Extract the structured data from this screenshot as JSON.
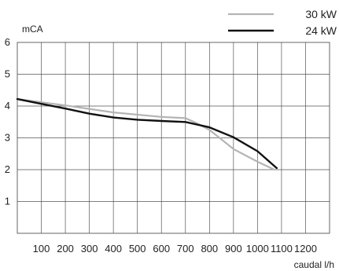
{
  "chart_data": {
    "type": "line",
    "title": "",
    "xlabel": "caudal l/h",
    "ylabel": "mCA",
    "xlim": [
      0,
      1300
    ],
    "ylim": [
      0,
      6
    ],
    "x_ticks": [
      100,
      200,
      300,
      400,
      500,
      600,
      700,
      800,
      900,
      1000,
      1100,
      1200
    ],
    "x_tick_labels": [
      "100",
      "200",
      "300",
      "400",
      "500",
      "600",
      "700",
      "800",
      "900",
      "1000",
      "1100",
      "1200"
    ],
    "y_ticks": [
      1,
      2,
      3,
      4,
      5,
      6
    ],
    "y_tick_labels": [
      "1",
      "2",
      "3",
      "4",
      "5",
      "6"
    ],
    "grid": true,
    "legend_position": "top-right",
    "series": [
      {
        "name": "30 kW",
        "color": "#b4b4b4",
        "x": [
          0,
          200,
          400,
          600,
          700,
          750,
          800,
          850,
          900,
          1000,
          1070
        ],
        "y": [
          4.22,
          4.02,
          3.8,
          3.66,
          3.62,
          3.45,
          3.25,
          2.95,
          2.65,
          2.25,
          2.0
        ]
      },
      {
        "name": "24 kW",
        "color": "#111111",
        "x": [
          0,
          100,
          200,
          300,
          400,
          500,
          600,
          700,
          800,
          900,
          1000,
          1080
        ],
        "y": [
          4.22,
          4.07,
          3.92,
          3.76,
          3.64,
          3.57,
          3.53,
          3.5,
          3.33,
          3.02,
          2.58,
          2.05
        ]
      }
    ]
  }
}
